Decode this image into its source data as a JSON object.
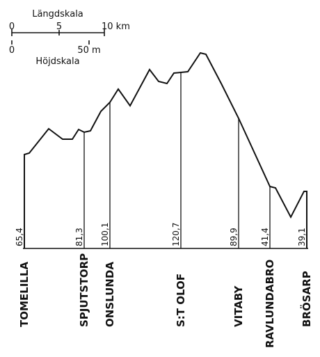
{
  "scale": {
    "length_title": "Längdskala",
    "length_ticks": [
      "0",
      "5",
      "10 km"
    ],
    "height_title": "Höjdskala",
    "height_ticks": [
      "0",
      "50 m"
    ]
  },
  "stations": [
    {
      "name": "TOMELILLA",
      "height": "65,4"
    },
    {
      "name": "SPJUTSTORP",
      "height": "81,3"
    },
    {
      "name": "ONSLUNDA",
      "height": "100,1"
    },
    {
      "name": "S:T OLOF",
      "height": "120,7"
    },
    {
      "name": "VITABY",
      "height": "89,9"
    },
    {
      "name": "RAVLUNDABRO",
      "height": "41,4"
    },
    {
      "name": "BRÖSARP",
      "height": "39,1"
    }
  ]
}
